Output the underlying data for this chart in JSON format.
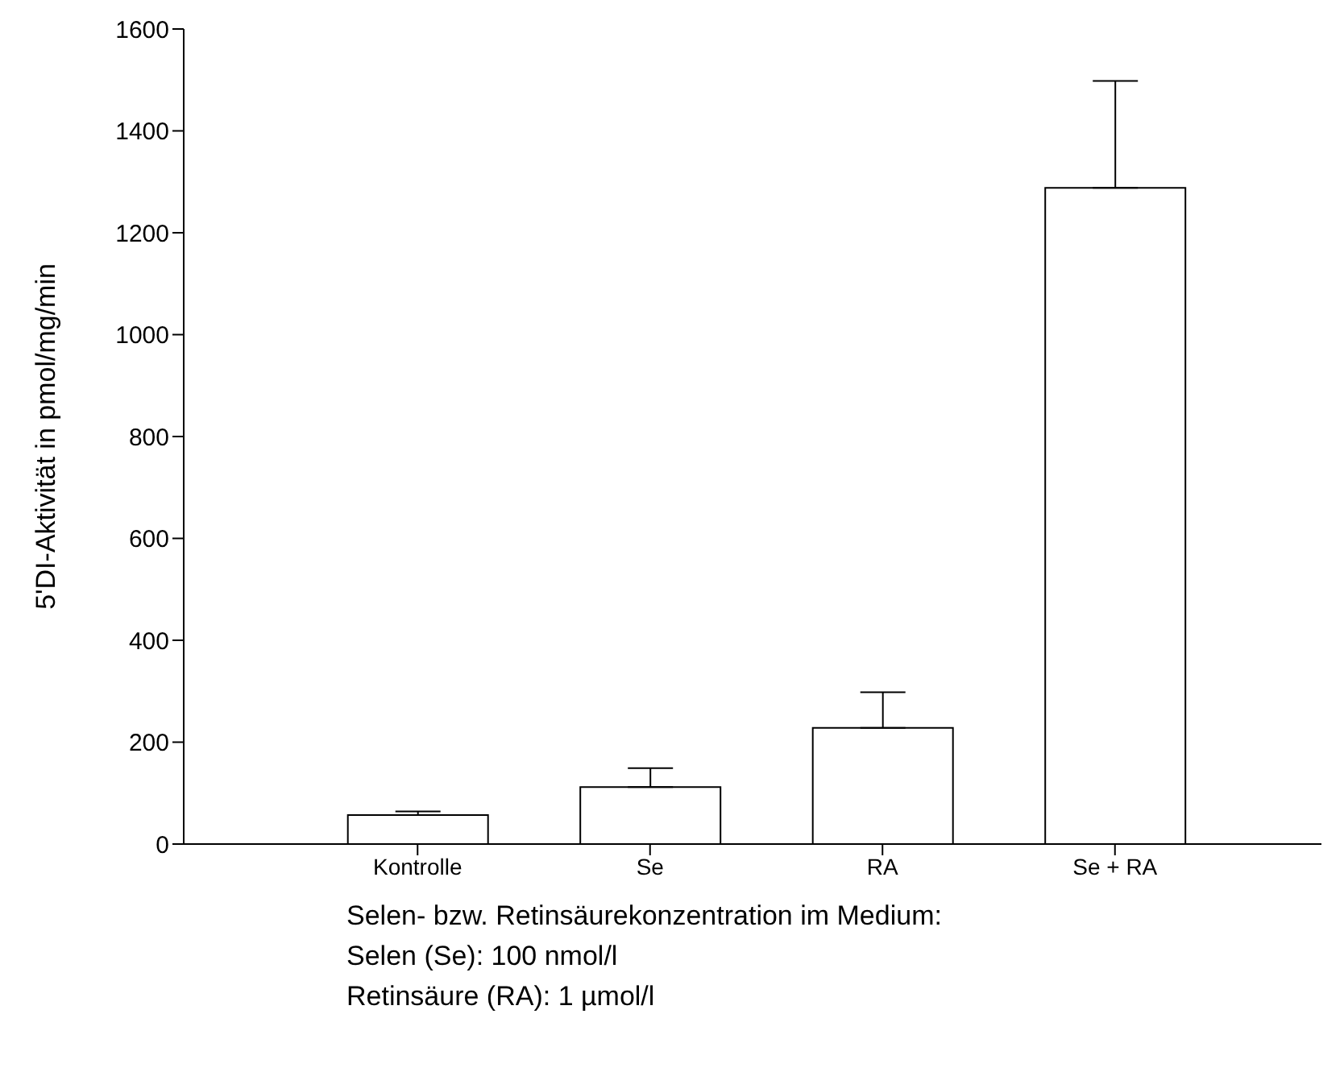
{
  "chart_data": {
    "type": "bar",
    "ylabel": "5'DI-Aktivität in pmol/mg/min",
    "xlabel": "Selen- bzw. Retinsäurekonzentration im Medium:",
    "annotations": [
      "Selen (Se): 100 nmol/l",
      "Retinsäure (RA): 1 µmol/l"
    ],
    "categories": [
      "Kontrolle",
      "Se",
      "RA",
      "Se + RA"
    ],
    "values": [
      57,
      112,
      228,
      1288
    ],
    "errors": [
      [
        57,
        64
      ],
      [
        112,
        149
      ],
      [
        228,
        298
      ],
      [
        1288,
        1498
      ]
    ],
    "color": "#ffffff",
    "ylim": [
      0,
      1600
    ],
    "yticks": [
      0,
      200,
      400,
      600,
      800,
      1000,
      1200,
      1400,
      1600
    ],
    "grid": false,
    "legend": false
  }
}
